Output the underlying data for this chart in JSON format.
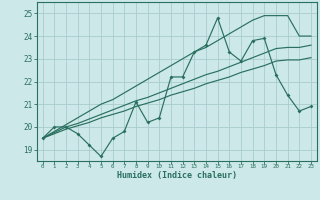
{
  "xlabel": "Humidex (Indice chaleur)",
  "ylabel": "",
  "bg_color": "#cce8e8",
  "plot_bg_color": "#cce8e8",
  "grid_color": "#aacccc",
  "line_color": "#2a7060",
  "xlim": [
    -0.5,
    23.5
  ],
  "ylim": [
    18.5,
    25.5
  ],
  "xticks": [
    0,
    1,
    2,
    3,
    4,
    5,
    6,
    7,
    8,
    9,
    10,
    11,
    12,
    13,
    14,
    15,
    16,
    17,
    18,
    19,
    20,
    21,
    22,
    23
  ],
  "yticks": [
    19,
    20,
    21,
    22,
    23,
    24,
    25
  ],
  "x": [
    0,
    1,
    2,
    3,
    4,
    5,
    6,
    7,
    8,
    9,
    10,
    11,
    12,
    13,
    14,
    15,
    16,
    17,
    18,
    19,
    20,
    21,
    22,
    23
  ],
  "y_main": [
    19.5,
    20.0,
    20.0,
    19.7,
    19.2,
    18.7,
    19.5,
    19.8,
    21.1,
    20.2,
    20.4,
    22.2,
    22.2,
    23.3,
    23.6,
    24.8,
    23.3,
    22.9,
    23.8,
    23.9,
    22.3,
    21.4,
    20.7,
    20.9
  ],
  "y_trend_top": [
    19.5,
    19.8,
    20.1,
    20.4,
    20.7,
    21.0,
    21.2,
    21.5,
    21.8,
    22.1,
    22.4,
    22.7,
    23.0,
    23.3,
    23.5,
    23.8,
    24.1,
    24.4,
    24.7,
    24.9,
    24.9,
    24.9,
    24.0,
    24.0
  ],
  "y_trend_mid1": [
    19.5,
    19.75,
    20.0,
    20.15,
    20.35,
    20.55,
    20.75,
    20.95,
    21.15,
    21.3,
    21.5,
    21.7,
    21.9,
    22.1,
    22.3,
    22.45,
    22.65,
    22.85,
    23.05,
    23.25,
    23.45,
    23.5,
    23.5,
    23.6
  ],
  "y_trend_mid2": [
    19.5,
    19.7,
    19.9,
    20.05,
    20.2,
    20.4,
    20.55,
    20.7,
    20.9,
    21.05,
    21.2,
    21.4,
    21.55,
    21.7,
    21.9,
    22.05,
    22.2,
    22.4,
    22.55,
    22.7,
    22.9,
    22.95,
    22.95,
    23.05
  ]
}
